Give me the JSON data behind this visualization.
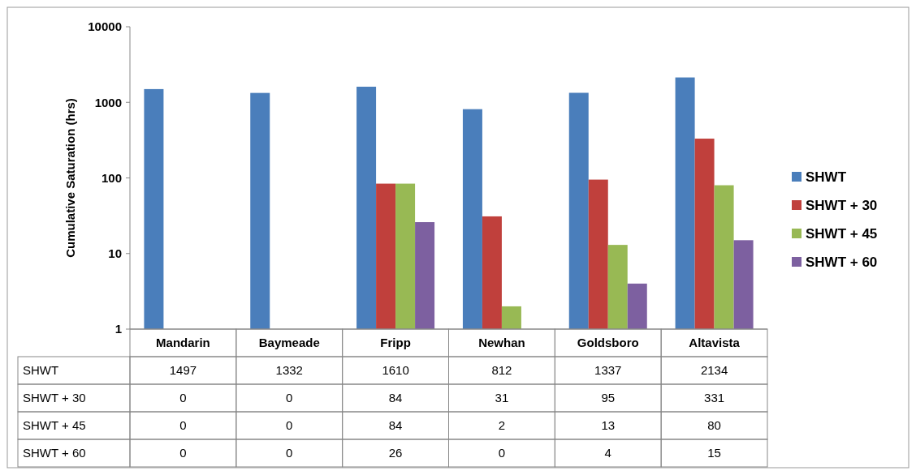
{
  "chart_data": {
    "type": "bar",
    "ylabel": "Cumulative Saturation (hrs)",
    "categories": [
      "Mandarin",
      "Baymeade",
      "Fripp",
      "Newhan",
      "Goldsboro",
      "Altavista"
    ],
    "series": [
      {
        "name": "SHWT",
        "color": "#4a7ebb",
        "values": [
          1497,
          1332,
          1610,
          812,
          1337,
          2134
        ],
        "value_labels": [
          "1497",
          "1332",
          "1610",
          "812",
          "1337",
          "2134"
        ]
      },
      {
        "name": "SHWT + 30",
        "color": "#c0403c",
        "values": [
          null,
          null,
          84,
          31,
          95,
          331
        ],
        "value_labels": [
          "0",
          "0",
          "84",
          "31",
          "95",
          "331"
        ]
      },
      {
        "name": "SHWT + 45",
        "color": "#98b954",
        "values": [
          null,
          null,
          84,
          2,
          13,
          80
        ],
        "value_labels": [
          "0",
          "0",
          "84",
          "2",
          "13",
          "80"
        ]
      },
      {
        "name": "SHWT + 60",
        "color": "#7d60a0",
        "values": [
          null,
          null,
          26,
          null,
          4,
          15
        ],
        "value_labels": [
          "0",
          "0",
          "26",
          "0",
          "4",
          "15"
        ]
      }
    ],
    "log": true,
    "ylim": [
      1,
      10000
    ],
    "yticks": [
      1,
      10,
      100,
      1000,
      10000
    ],
    "legend": "right"
  }
}
